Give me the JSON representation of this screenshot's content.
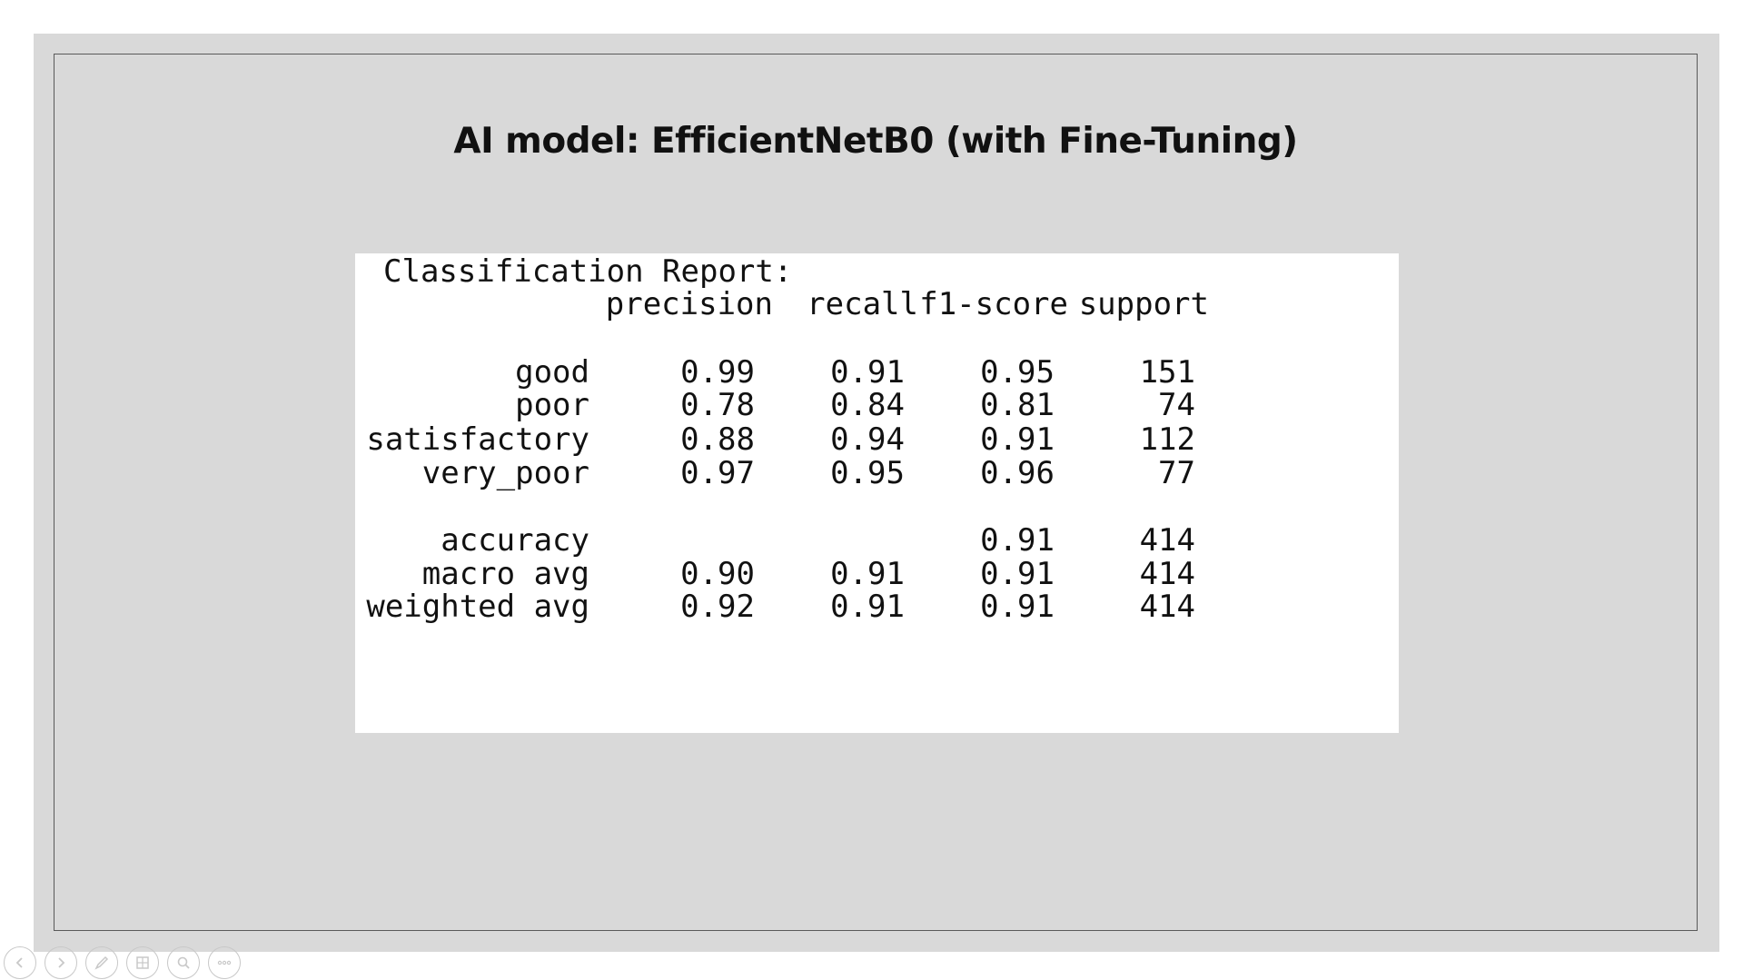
{
  "slide": {
    "title": "AI model: EfficientNetB0 (with Fine-Tuning)"
  },
  "report": {
    "heading": "Classification Report:",
    "columns": [
      "precision",
      "recall",
      "f1-score",
      "support"
    ],
    "rows": [
      {
        "label": "good",
        "precision": "0.99",
        "recall": "0.91",
        "f1": "0.95",
        "support": "151"
      },
      {
        "label": "poor",
        "precision": "0.78",
        "recall": "0.84",
        "f1": "0.81",
        "support": "74"
      },
      {
        "label": "satisfactory",
        "precision": "0.88",
        "recall": "0.94",
        "f1": "0.91",
        "support": "112"
      },
      {
        "label": "very_poor",
        "precision": "0.97",
        "recall": "0.95",
        "f1": "0.96",
        "support": "77"
      }
    ],
    "summary": [
      {
        "label": "accuracy",
        "precision": "",
        "recall": "",
        "f1": "0.91",
        "support": "414"
      },
      {
        "label": "macro avg",
        "precision": "0.90",
        "recall": "0.91",
        "f1": "0.91",
        "support": "414"
      },
      {
        "label": "weighted avg",
        "precision": "0.92",
        "recall": "0.91",
        "f1": "0.91",
        "support": "414"
      }
    ]
  },
  "toolbar": {
    "buttons": [
      {
        "icon": "previous-slide-icon"
      },
      {
        "icon": "next-slide-icon"
      },
      {
        "icon": "pen-icon"
      },
      {
        "icon": "slides-grid-icon"
      },
      {
        "icon": "zoom-icon"
      },
      {
        "icon": "more-options-icon"
      }
    ]
  },
  "colors": {
    "slide_background": "#d9d9d9",
    "frame_border": "#5a5a5a",
    "report_background": "#ffffff",
    "text": "#111111",
    "toolbar_icon": "#c8c8c8"
  }
}
